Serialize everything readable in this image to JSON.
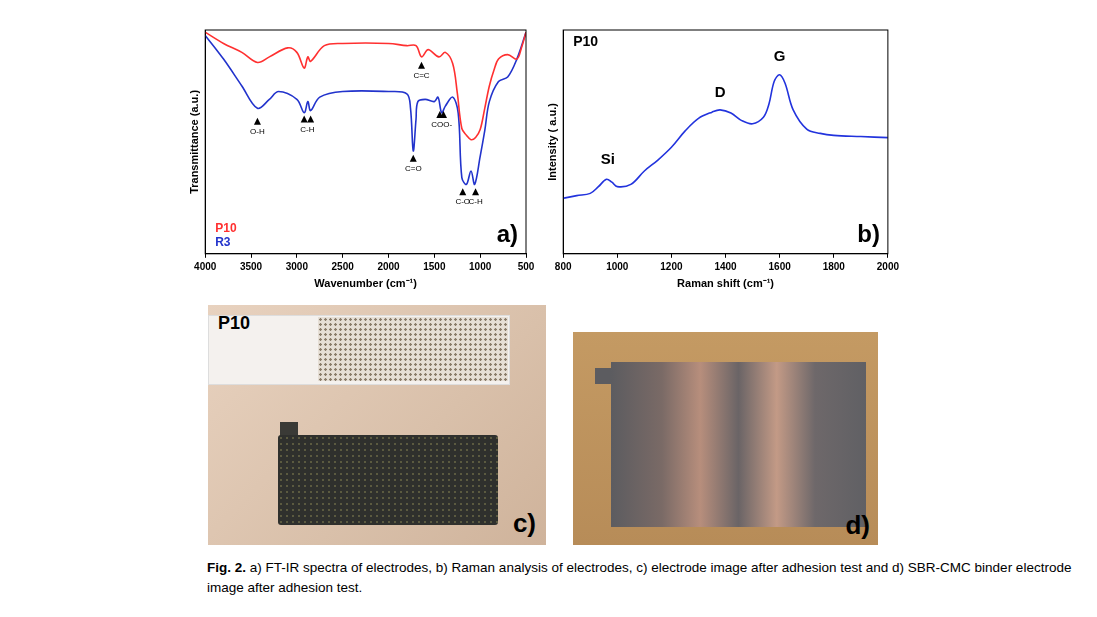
{
  "chart_data": [
    {
      "type": "line",
      "x_label": "Wavenumber (cm⁻¹)",
      "y_label": "Transmittance (a.u.)",
      "panel": "a)",
      "xlim": [
        4000,
        500
      ],
      "xticks": [
        4000,
        3500,
        3000,
        2500,
        2000,
        1500,
        1000,
        500
      ],
      "ylim": [
        0,
        100
      ],
      "tick_labels": "x",
      "grid": false,
      "legend": "lower left",
      "series": [
        {
          "name": "P10",
          "color": "#ff3030",
          "x": [
            4000,
            3800,
            3600,
            3430,
            3300,
            3100,
            3000,
            2920,
            2880,
            2850,
            2700,
            2500,
            2000,
            1800,
            1700,
            1640,
            1580,
            1550,
            1450,
            1380,
            1300,
            1250,
            1200,
            1150,
            1100,
            1050,
            1000,
            950,
            900,
            850,
            800,
            700,
            600,
            550,
            500
          ],
          "values": [
            99,
            94,
            90,
            85.5,
            88,
            92,
            90,
            83,
            88,
            86,
            93,
            94,
            94,
            93,
            93,
            88,
            91,
            91,
            88,
            90,
            85,
            72,
            56,
            53,
            51,
            52,
            55.5,
            65,
            75,
            82,
            87,
            89,
            87,
            92,
            99
          ]
        },
        {
          "name": "R3",
          "color": "#2233cc",
          "x": [
            4000,
            3800,
            3600,
            3430,
            3300,
            3200,
            3000,
            2920,
            2880,
            2850,
            2750,
            2500,
            2000,
            1800,
            1760,
            1730,
            1700,
            1680,
            1600,
            1500,
            1460,
            1420,
            1380,
            1300,
            1240,
            1200,
            1150,
            1100,
            1060,
            1000,
            950,
            900,
            800,
            700,
            600,
            500
          ],
          "values": [
            97.6,
            87,
            75,
            65,
            69,
            72.5,
            69,
            63,
            68,
            64,
            70,
            72.5,
            72.5,
            71.5,
            65,
            46,
            60,
            68,
            69,
            68,
            70,
            63,
            66,
            70,
            63,
            34,
            31,
            37,
            31,
            43.5,
            55,
            68,
            77,
            79,
            87,
            99
          ]
        }
      ],
      "annotations": [
        {
          "text": "O-H",
          "x": [
            3430
          ],
          "y": 59
        },
        {
          "text": "C-H",
          "x": [
            2920,
            2850
          ],
          "y": 60
        },
        {
          "text": "C=O",
          "x": [
            1730
          ],
          "y": 42.5
        },
        {
          "text": "COO-",
          "x": [
            1440,
            1400
          ],
          "y": 62
        },
        {
          "text": "C=C",
          "x": [
            1640
          ],
          "y": 84
        },
        {
          "text": "C-O",
          "x": [
            1190
          ],
          "y": 27.5
        },
        {
          "text": "C-H",
          "x": [
            1050
          ],
          "y": 27.5
        }
      ]
    },
    {
      "type": "line",
      "title": "P10",
      "x_label": "Raman shift (cm⁻¹)",
      "y_label": "Intensity ( a.u.)",
      "panel": "b)",
      "xlim": [
        800,
        2000
      ],
      "xticks": [
        800,
        1000,
        1200,
        1400,
        1600,
        1800,
        2000
      ],
      "ylim": [
        0,
        100
      ],
      "tick_labels": "x",
      "grid": false,
      "series": [
        {
          "name": "P10",
          "color": "#2233dd",
          "x": [
            800,
            850,
            900,
            930,
            960,
            980,
            1000,
            1050,
            1100,
            1150,
            1200,
            1250,
            1300,
            1350,
            1380,
            1420,
            1460,
            1500,
            1540,
            1560,
            1580,
            1600,
            1620,
            1650,
            1700,
            1750,
            1800,
            1900,
            2000
          ],
          "values": [
            24.8,
            26,
            27,
            30,
            33.3,
            32,
            30,
            31,
            37,
            41.9,
            47.6,
            54.8,
            60.5,
            63.3,
            64.3,
            62.9,
            59.5,
            58.1,
            61,
            66.7,
            77.1,
            80,
            76.2,
            64.3,
            55.7,
            53.8,
            52.9,
            52.4,
            51.9
          ]
        }
      ],
      "annotations": [
        {
          "text": "Si",
          "x": [
            965
          ],
          "y": 42
        },
        {
          "text": "D",
          "x": [
            1380
          ],
          "y": 72
        },
        {
          "text": "G",
          "x": [
            1600
          ],
          "y": 88
        }
      ]
    }
  ],
  "photos": [
    {
      "label": "P10",
      "panel": "c)"
    },
    {
      "panel": "d)"
    }
  ],
  "caption": {
    "label": "Fig. 2.",
    "text": "a) FT-IR spectra of electrodes, b) Raman analysis of electrodes, c) electrode image after adhesion test and d) SBR-CMC binder electrode image after adhesion test."
  }
}
